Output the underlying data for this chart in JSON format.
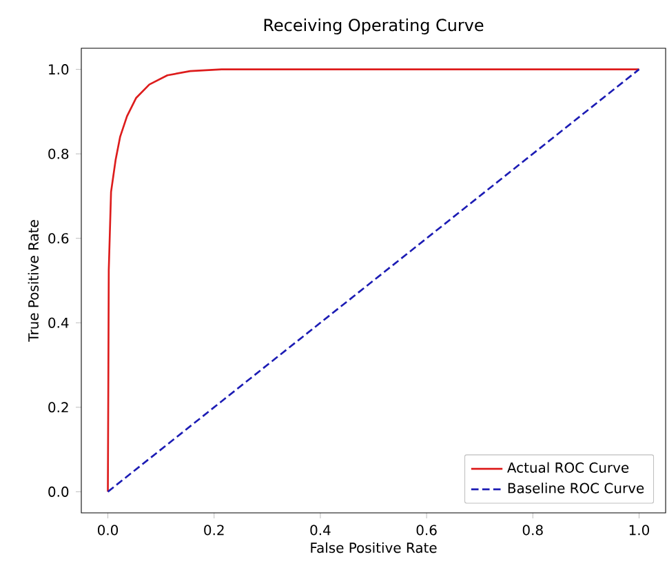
{
  "chart_data": {
    "type": "line",
    "title": "Receiving Operating Curve",
    "xlabel": "False Positive Rate",
    "ylabel": "True Positive Rate",
    "xlim": [
      -0.05,
      1.05
    ],
    "ylim": [
      -0.05,
      1.05
    ],
    "xticks": [
      {
        "value": 0,
        "label": "0.0"
      },
      {
        "value": 0.2,
        "label": "0.2"
      },
      {
        "value": 0.4,
        "label": "0.4"
      },
      {
        "value": 0.6,
        "label": "0.6"
      },
      {
        "value": 0.8,
        "label": "0.8"
      },
      {
        "value": 1,
        "label": "1.0"
      }
    ],
    "yticks": [
      {
        "value": 0,
        "label": "0.0"
      },
      {
        "value": 0.2,
        "label": "0.2"
      },
      {
        "value": 0.4,
        "label": "0.4"
      },
      {
        "value": 0.6,
        "label": "0.6"
      },
      {
        "value": 0.8,
        "label": "0.8"
      },
      {
        "value": 1,
        "label": "1.0"
      }
    ],
    "legend": "bottom right",
    "grid": false,
    "series": [
      {
        "name": "Actual ROC Curve",
        "color": "#dd1c1c",
        "line_style": "solid",
        "x": [
          0,
          0.001,
          0.0017,
          0.006,
          0.0145,
          0.023,
          0.036,
          0.053,
          0.078,
          0.112,
          0.155,
          0.214,
          0.4,
          1
        ],
        "values": [
          0,
          0.3,
          0.525,
          0.71,
          0.785,
          0.84,
          0.889,
          0.932,
          0.964,
          0.986,
          0.996,
          1,
          1,
          1
        ]
      },
      {
        "name": "Baseline ROC Curve",
        "color": "#1c1cb4",
        "line_style": "dashed",
        "x": [
          0,
          1
        ],
        "values": [
          0,
          1
        ]
      }
    ]
  }
}
